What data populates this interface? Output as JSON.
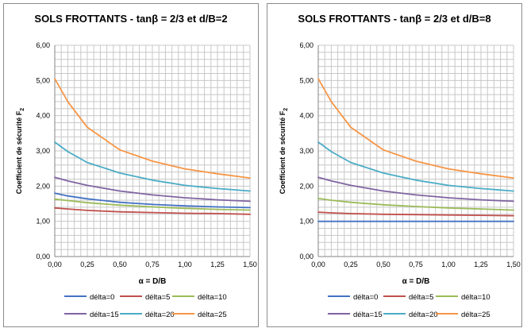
{
  "chart_data": [
    {
      "type": "line",
      "title": "SOLS FROTTANTS - tanβ = 2/3 et d/B=2",
      "xlabel": "α = D/B",
      "ylabel": "Coefficient de sécurité F",
      "ylabel_sub": "2",
      "xlim": [
        0,
        1.5
      ],
      "ylim": [
        0,
        6
      ],
      "x_ticks": [
        "0,00",
        "0,25",
        "0,50",
        "0,75",
        "1,00",
        "1,25",
        "1,50"
      ],
      "y_ticks": [
        "0,00",
        "1,00",
        "2,00",
        "3,00",
        "4,00",
        "5,00",
        "6,00"
      ],
      "grid": true,
      "legend_position": "bottom",
      "x": [
        0.0,
        0.1,
        0.25,
        0.5,
        0.75,
        1.0,
        1.25,
        1.5
      ],
      "series": [
        {
          "name": "délta=0",
          "color": "#4472C4",
          "values": [
            1.8,
            1.72,
            1.64,
            1.54,
            1.48,
            1.44,
            1.41,
            1.39
          ]
        },
        {
          "name": "délta=5",
          "color": "#C0504D",
          "values": [
            1.38,
            1.35,
            1.31,
            1.27,
            1.25,
            1.23,
            1.22,
            1.2
          ]
        },
        {
          "name": "délta=10",
          "color": "#9BBB59",
          "values": [
            1.63,
            1.59,
            1.53,
            1.46,
            1.41,
            1.37,
            1.34,
            1.32
          ]
        },
        {
          "name": "délta=15",
          "color": "#8064A2",
          "values": [
            2.25,
            2.15,
            2.02,
            1.86,
            1.75,
            1.67,
            1.61,
            1.57
          ]
        },
        {
          "name": "délta=20",
          "color": "#4BACC6",
          "values": [
            3.25,
            2.98,
            2.67,
            2.37,
            2.17,
            2.02,
            1.93,
            1.86
          ]
        },
        {
          "name": "délta=25",
          "color": "#F79646",
          "values": [
            5.05,
            4.4,
            3.67,
            3.03,
            2.71,
            2.49,
            2.35,
            2.23
          ]
        }
      ]
    },
    {
      "type": "line",
      "title": "SOLS FROTTANTS - tanβ = 2/3 et d/B=8",
      "xlabel": "α = D/B",
      "ylabel": "Coefficient de sécurité F",
      "ylabel_sub": "2",
      "xlim": [
        0,
        1.5
      ],
      "ylim": [
        0,
        6
      ],
      "x_ticks": [
        "0,00",
        "0,25",
        "0,50",
        "0,75",
        "1,00",
        "1,25",
        "1,50"
      ],
      "y_ticks": [
        "0,00",
        "1,00",
        "2,00",
        "3,00",
        "4,00",
        "5,00",
        "6,00"
      ],
      "grid": true,
      "legend_position": "bottom",
      "x": [
        0.0,
        0.1,
        0.25,
        0.5,
        0.75,
        1.0,
        1.25,
        1.5
      ],
      "series": [
        {
          "name": "délta=0",
          "color": "#4472C4",
          "values": [
            1.0,
            1.0,
            1.0,
            1.0,
            1.0,
            1.0,
            1.0,
            1.0
          ]
        },
        {
          "name": "délta=5",
          "color": "#C0504D",
          "values": [
            1.26,
            1.24,
            1.22,
            1.2,
            1.19,
            1.18,
            1.17,
            1.16
          ]
        },
        {
          "name": "délta=10",
          "color": "#9BBB59",
          "values": [
            1.65,
            1.6,
            1.54,
            1.47,
            1.42,
            1.38,
            1.35,
            1.32
          ]
        },
        {
          "name": "délta=15",
          "color": "#8064A2",
          "values": [
            2.25,
            2.15,
            2.02,
            1.86,
            1.75,
            1.67,
            1.61,
            1.57
          ]
        },
        {
          "name": "délta=20",
          "color": "#4BACC6",
          "values": [
            3.25,
            2.98,
            2.67,
            2.37,
            2.17,
            2.02,
            1.93,
            1.86
          ]
        },
        {
          "name": "délta=25",
          "color": "#F79646",
          "values": [
            5.05,
            4.4,
            3.67,
            3.03,
            2.71,
            2.49,
            2.35,
            2.23
          ]
        }
      ]
    }
  ]
}
